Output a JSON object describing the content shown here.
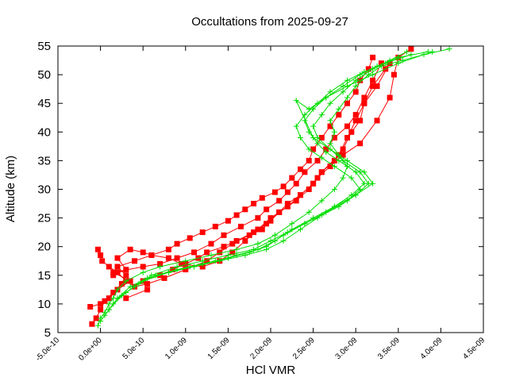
{
  "chart_data": {
    "type": "line",
    "title": "Occultations from 2025-09-27",
    "xlabel": "HCl VMR",
    "ylabel": "Altitude (km)",
    "xlim": [
      -5e-10,
      4.5e-09
    ],
    "ylim": [
      5,
      55
    ],
    "x_ticks": [
      "-5.0e-10",
      "0.0e+00",
      "5.0e-10",
      "1.0e-09",
      "1.5e-09",
      "2.0e-09",
      "2.5e-09",
      "3.0e-09",
      "3.5e-09",
      "4.0e-09",
      "4.5e-09"
    ],
    "y_ticks": [
      "5",
      "10",
      "15",
      "20",
      "25",
      "30",
      "35",
      "40",
      "45",
      "50",
      "55"
    ],
    "grid": false,
    "legend": "none",
    "colors": {
      "red_series": "#ff0000",
      "green_series": "#00dd00"
    },
    "series": [
      {
        "marker": "square",
        "color": "#ff0000",
        "x": [
          -1e-10,
          -5e-11,
          0,
          5e-11,
          1.5e-10,
          2.5e-10,
          3e-10,
          2e-10,
          4e-10,
          6e-10,
          8e-10,
          9e-10,
          1.05e-09,
          1.2e-09,
          1.35e-09,
          1.5e-09,
          1.6e-09,
          1.7e-09,
          1.8e-09,
          1.9e-09,
          2.05e-09,
          2.15e-09,
          2.25e-09,
          2.35e-09,
          2.45e-09,
          2.5e-09,
          2.6e-09,
          2.7e-09,
          2.8e-09,
          2.9e-09,
          3e-09,
          3.05e-09,
          3.15e-09,
          3.2e-09
        ],
        "y": [
          6.5,
          7.5,
          9,
          10.5,
          12,
          13.5,
          15,
          16.5,
          17.5,
          18.5,
          19.5,
          20.5,
          21.5,
          22.5,
          23.5,
          24.5,
          25.5,
          26.5,
          27.5,
          28.5,
          29.5,
          30.5,
          32,
          33.5,
          35,
          37,
          39,
          41,
          43,
          45,
          47,
          49,
          51,
          53
        ]
      },
      {
        "marker": "square",
        "color": "#ff0000",
        "x": [
          -1.2e-10,
          0,
          1e-10,
          2e-10,
          3.5e-10,
          1.5e-10,
          5e-10,
          7e-10,
          9e-10,
          1.1e-09,
          1.3e-09,
          1.45e-09,
          1.65e-09,
          1.85e-09,
          1.95e-09,
          2.1e-09,
          2.2e-09,
          2.3e-09,
          2.4e-09,
          2.55e-09,
          2.65e-09,
          2.75e-09,
          2.9e-09,
          3e-09,
          3.1e-09,
          3.2e-09,
          3.3e-09
        ],
        "y": [
          9.5,
          10,
          11,
          12.5,
          14,
          15.5,
          16.5,
          17,
          18,
          19,
          20.5,
          22,
          23.5,
          25,
          26.5,
          28,
          29.5,
          31,
          33,
          35,
          37,
          39,
          41,
          43,
          46,
          49,
          52
        ]
      },
      {
        "marker": "square",
        "color": "#ff0000",
        "x": [
          0,
          -3e-11,
          2e-11,
          1e-10,
          2e-10,
          3e-10,
          4e-10,
          5.5e-10,
          7.5e-10,
          1e-09,
          1.25e-09,
          1.4e-09,
          1.55e-09,
          1.75e-09,
          1.9e-09,
          2e-09,
          2.1e-09,
          2.2e-09,
          2.35e-09,
          2.5e-09,
          2.6e-09,
          2.75e-09,
          2.85e-09,
          2.95e-09,
          3.05e-09,
          3.1e-09,
          3.2e-09,
          3.35e-09
        ],
        "y": [
          18.5,
          19.5,
          17.5,
          16.5,
          15.5,
          14,
          13,
          13.5,
          14.5,
          16,
          17.5,
          19,
          20.5,
          22,
          23,
          24.5,
          26,
          27.5,
          29,
          31,
          33,
          35,
          37,
          40,
          42,
          45,
          48,
          51
        ]
      },
      {
        "marker": "square",
        "color": "#ff0000",
        "x": [
          3e-10,
          5.5e-10,
          5e-10,
          7e-10,
          8.5e-10,
          1e-09,
          1.15e-09,
          1.25e-09,
          1.45e-09,
          1.6e-09,
          1.8e-09,
          1.95e-09,
          2.1e-09,
          2.3e-09,
          2.45e-09,
          2.55e-09,
          2.7e-09,
          2.85e-09,
          3.05e-09,
          3.25e-09,
          3.4e-09,
          3.45e-09,
          3.5e-09,
          3.65e-09
        ],
        "y": [
          11,
          12.5,
          14,
          15,
          16,
          17,
          18,
          19,
          20,
          21,
          22.5,
          24,
          26,
          28,
          30,
          32,
          34,
          36,
          38,
          42,
          46,
          50,
          53,
          54.5
        ]
      },
      {
        "marker": "square",
        "color": "#ff0000",
        "x": [
          1.5e-10,
          3e-10,
          2e-10,
          3.5e-10,
          5e-10,
          6e-10,
          8e-10,
          9.5e-10,
          1.2e-09,
          1.4e-09,
          1.55e-09,
          1.7e-09,
          1.85e-09,
          2e-09,
          2.2e-09,
          2.35e-09,
          2.5e-09,
          2.6e-09,
          2.8e-09,
          2.9e-09,
          3e-09,
          3.1e-09,
          3.25e-09,
          3.4e-09
        ],
        "y": [
          15,
          16,
          18,
          19.5,
          19,
          18.5,
          18,
          17,
          16.5,
          17.5,
          19,
          21,
          23,
          25,
          27,
          29,
          31,
          33,
          36,
          39,
          42,
          45,
          48,
          52
        ]
      }
    ],
    "series_green": [
      {
        "marker": "plus",
        "color": "#00dd00",
        "x": [
          -3e-11,
          0,
          5e-11,
          1e-10,
          1.5e-10,
          2e-10,
          3e-10,
          5e-10,
          7e-10,
          1e-09,
          1.3e-09,
          1.6e-09,
          1.85e-09,
          2.05e-09,
          2.25e-09,
          2.45e-09,
          2.6e-09,
          2.75e-09,
          2.85e-09,
          2.9e-09,
          2.8e-09,
          2.7e-09,
          2.75e-09,
          2.7e-09,
          2.8e-09,
          2.9e-09,
          3e-09,
          3.15e-09,
          3.3e-09,
          3.55e-09,
          3.8e-09,
          4.1e-09
        ],
        "y": [
          6.2,
          7.5,
          8.5,
          10,
          11,
          12.5,
          14,
          15.5,
          16.5,
          17.5,
          18.5,
          19.5,
          20.5,
          22,
          24,
          26,
          28,
          30,
          32,
          34,
          36,
          38,
          40,
          42,
          44,
          46,
          48,
          50,
          51.5,
          52.5,
          53.5,
          54.5
        ]
      },
      {
        "marker": "plus",
        "color": "#00dd00",
        "x": [
          0,
          1e-10,
          2e-10,
          4e-10,
          6e-10,
          9e-10,
          1.2e-09,
          1.5e-09,
          1.8e-09,
          2e-09,
          2.2e-09,
          2.4e-09,
          2.6e-09,
          2.8e-09,
          3e-09,
          3.2e-09,
          3.1e-09,
          2.9e-09,
          2.7e-09,
          2.55e-09,
          2.5e-09,
          2.6e-09,
          2.7e-09,
          2.85e-09,
          3e-09,
          3.2e-09,
          3.4e-09,
          3.6e-09
        ],
        "y": [
          7,
          9,
          11,
          13,
          15,
          16.5,
          17.5,
          18.5,
          19.5,
          21,
          22.5,
          24,
          25.5,
          27,
          29,
          31,
          33,
          35,
          37,
          39,
          41,
          43,
          45,
          47,
          49,
          51,
          52.5,
          54
        ]
      },
      {
        "marker": "plus",
        "color": "#00dd00",
        "x": [
          5e-11,
          1.5e-10,
          3e-10,
          5e-10,
          8e-10,
          1.1e-09,
          1.4e-09,
          1.7e-09,
          1.95e-09,
          2.15e-09,
          2.35e-09,
          2.55e-09,
          2.75e-09,
          2.95e-09,
          3.1e-09,
          3e-09,
          2.8e-09,
          2.65e-09,
          2.55e-09,
          2.45e-09,
          2.4e-09,
          2.5e-09,
          2.65e-09,
          2.85e-09,
          3.05e-09,
          3.25e-09,
          3.5e-09,
          3.85e-09
        ],
        "y": [
          8,
          10,
          12,
          14,
          15.5,
          16.5,
          17.5,
          18.5,
          19.5,
          21,
          23,
          25,
          27,
          29,
          31,
          33,
          35,
          36.5,
          38,
          40,
          42,
          44,
          46,
          48,
          50,
          51.5,
          53,
          54
        ]
      },
      {
        "marker": "plus",
        "color": "#00dd00",
        "x": [
          1e-10,
          2.5e-10,
          4.5e-10,
          6.5e-10,
          9e-10,
          1.2e-09,
          1.5e-09,
          1.75e-09,
          1.95e-09,
          2.15e-09,
          2.4e-09,
          2.65e-09,
          2.9e-09,
          3.05e-09,
          2.95e-09,
          2.75e-09,
          2.6e-09,
          2.45e-09,
          2.35e-09,
          2.3e-09,
          2.4e-09,
          2.55e-09,
          2.7e-09,
          2.9e-09,
          3.1e-09,
          3.35e-09,
          3.65e-09
        ],
        "y": [
          9,
          11.5,
          13.5,
          15,
          16,
          17,
          18,
          19,
          20,
          22,
          24,
          26,
          28,
          30,
          32,
          34,
          35.5,
          37,
          39,
          41,
          43,
          45,
          47,
          49,
          50.5,
          52,
          53.5
        ]
      },
      {
        "marker": "plus",
        "color": "#00dd00",
        "x": [
          2e-10,
          3.5e-10,
          5.5e-10,
          8e-10,
          1.05e-09,
          1.35e-09,
          1.6e-09,
          1.85e-09,
          2.05e-09,
          2.25e-09,
          2.5e-09,
          2.75e-09,
          3e-09,
          3.15e-09,
          3.05e-09,
          2.85e-09,
          2.7e-09,
          2.5e-09,
          2.3e-09,
          2.45e-09,
          2.65e-09,
          2.9e-09,
          3.2e-09,
          3.5e-09,
          3.9e-09
        ],
        "y": [
          11,
          13,
          14.5,
          15.5,
          16.5,
          17.5,
          18.5,
          19.5,
          21,
          23,
          25,
          27,
          29,
          31,
          33,
          35,
          37,
          39,
          45.5,
          44,
          46,
          48,
          50,
          52,
          54
        ]
      }
    ]
  }
}
